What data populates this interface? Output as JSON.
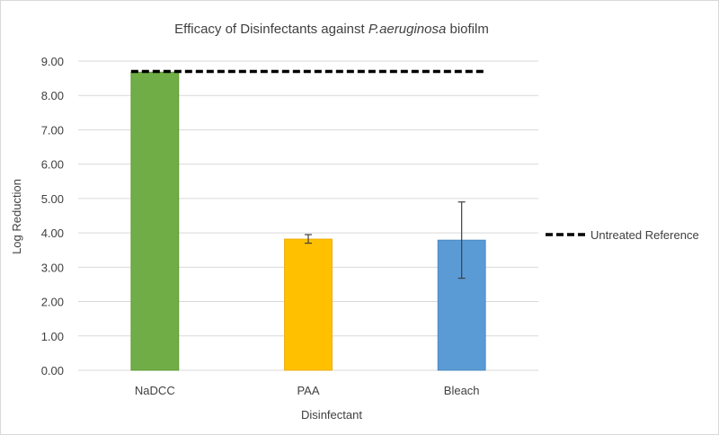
{
  "chart_data": {
    "type": "bar",
    "title_main": "Efficacy of Disinfectants against ",
    "title_italic": "P.aeruginosa",
    "title_end": " biofilm",
    "xlabel": "Disinfectant",
    "ylabel": "Log Reduction",
    "ylim": [
      0,
      9
    ],
    "yticks": [
      "0.00",
      "1.00",
      "2.00",
      "3.00",
      "4.00",
      "5.00",
      "6.00",
      "7.00",
      "8.00",
      "9.00"
    ],
    "categories": [
      "NaDCC",
      "PAA",
      "Bleach"
    ],
    "values": [
      8.68,
      3.82,
      3.79
    ],
    "error_low": [
      8.68,
      3.7,
      2.68
    ],
    "error_high": [
      8.68,
      3.95,
      4.9
    ],
    "colors": [
      "#70ad47",
      "#ffc000",
      "#5b9bd5"
    ],
    "reference": {
      "name": "Untreated Reference",
      "value": 8.7
    },
    "grid": true,
    "legend_position": "right"
  }
}
